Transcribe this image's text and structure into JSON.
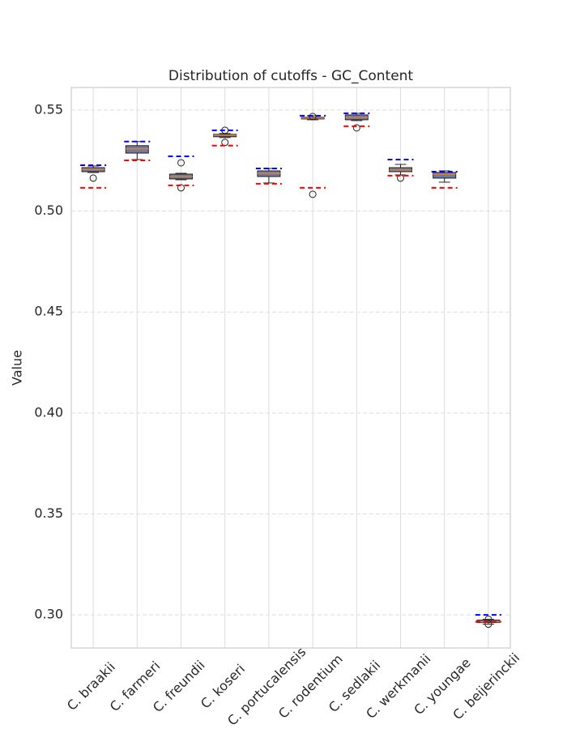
{
  "chart_data": {
    "type": "box",
    "title": "Distribution of cutoffs - GC_Content",
    "ylabel": "Value",
    "categories": [
      "C. braakii",
      "C. farmeri",
      "C. freundii",
      "C. koseri",
      "C. portucalensis",
      "C. rodentium",
      "C. sedlakii",
      "C. werkmanii",
      "C. youngae",
      "C. beijerinckii"
    ],
    "boxes": [
      {
        "whislo": 0.5191,
        "q1": 0.5195,
        "median": 0.5207,
        "q3": 0.5215,
        "whishi": 0.5223,
        "fliers": [
          0.5163
        ]
      },
      {
        "whislo": 0.5255,
        "q1": 0.5287,
        "median": 0.5308,
        "q3": 0.5324,
        "whishi": 0.5344,
        "fliers": []
      },
      {
        "whislo": 0.5155,
        "q1": 0.5159,
        "median": 0.5171,
        "q3": 0.5183,
        "whishi": 0.5187,
        "fliers": [
          0.5239,
          0.5115
        ]
      },
      {
        "whislo": 0.5364,
        "q1": 0.5368,
        "median": 0.5376,
        "q3": 0.538,
        "whishi": 0.5384,
        "fliers": [
          0.54,
          0.534
        ]
      },
      {
        "whislo": 0.5139,
        "q1": 0.5171,
        "median": 0.5187,
        "q3": 0.5199,
        "whishi": 0.5211,
        "fliers": []
      },
      {
        "whislo": 0.5452,
        "q1": 0.5456,
        "median": 0.546,
        "q3": 0.5464,
        "whishi": 0.5472,
        "fliers": [
          0.5468,
          0.5083
        ]
      },
      {
        "whislo": 0.5448,
        "q1": 0.5452,
        "median": 0.5464,
        "q3": 0.5476,
        "whishi": 0.5484,
        "fliers": [
          0.5412
        ]
      },
      {
        "whislo": 0.5179,
        "q1": 0.5195,
        "median": 0.5203,
        "q3": 0.5215,
        "whishi": 0.5231,
        "fliers": [
          0.5163
        ]
      },
      {
        "whislo": 0.5143,
        "q1": 0.5163,
        "median": 0.5183,
        "q3": 0.5191,
        "whishi": 0.5199,
        "fliers": []
      },
      {
        "whislo": 0.2954,
        "q1": 0.2962,
        "median": 0.2966,
        "q3": 0.2974,
        "whishi": 0.2978,
        "fliers": [
          0.2978,
          0.2954
        ]
      }
    ],
    "upper_cutoff": [
      0.5227,
      0.5344,
      0.5271,
      0.54,
      0.5211,
      0.5472,
      0.5484,
      0.5255,
      0.5195,
      0.3
    ],
    "lower_cutoff": [
      0.5115,
      0.5251,
      0.5127,
      0.5324,
      0.5135,
      0.5115,
      0.542,
      0.5175,
      0.5115,
      0.2966
    ],
    "box_color": "#6e7b9e",
    "median_color": "#e07b39",
    "upper_cutoff_color": "#0000ff",
    "lower_cutoff_color": "#ff0000",
    "ylim": [
      0.2836,
      0.5612
    ],
    "yticks": [
      {
        "value": 0.3,
        "label": "0.30"
      },
      0.35,
      {
        "value": 0.4,
        "label": "0.40"
      },
      0.45,
      {
        "value": 0.5,
        "label": "0.50"
      },
      0.55
    ],
    "grid": true
  }
}
